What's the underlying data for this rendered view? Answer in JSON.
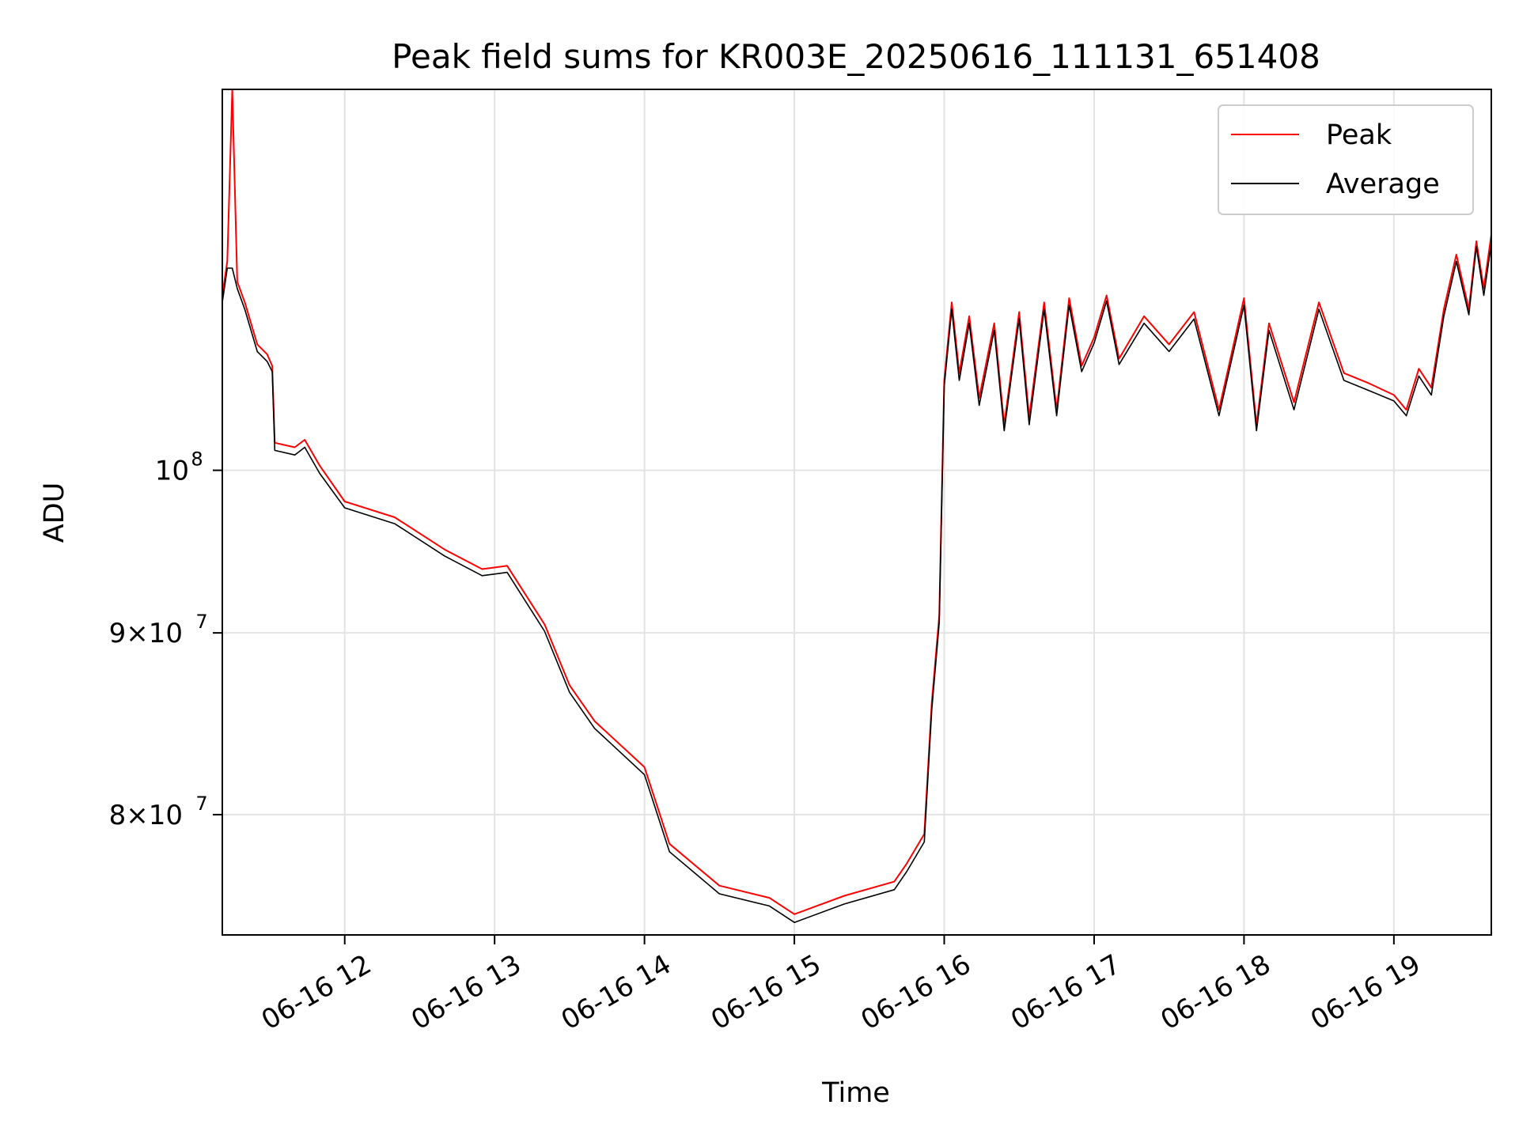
{
  "chart_data": {
    "type": "line",
    "title": "Peak field sums for KR003E_20250616_111131_651408",
    "xlabel": "Time",
    "ylabel": "ADU",
    "y_scale": "log",
    "x_range": [
      "06-16 11:11",
      "06-16 19:39"
    ],
    "ylim": [
      74000000,
      128000000
    ],
    "x_ticks": [
      "06-16 12",
      "06-16 13",
      "06-16 14",
      "06-16 15",
      "06-16 16",
      "06-16 17",
      "06-16 18",
      "06-16 19"
    ],
    "y_ticks": [
      {
        "value": 80000000,
        "mantissa": "8",
        "exponent": "7"
      },
      {
        "value": 90000000,
        "mantissa": "9",
        "exponent": "7"
      },
      {
        "value": 100000000,
        "base": "10",
        "exponent": "8"
      }
    ],
    "grid": true,
    "legend_position": "upper-right",
    "series": [
      {
        "name": "Peak",
        "color": "#ff0000",
        "x": [
          "06-16 11:11",
          "06-16 11:13",
          "06-16 11:15",
          "06-16 11:17",
          "06-16 11:20",
          "06-16 11:25",
          "06-16 11:29",
          "06-16 11:31",
          "06-16 11:32",
          "06-16 11:40",
          "06-16 11:44",
          "06-16 11:50",
          "06-16 12:00",
          "06-16 12:20",
          "06-16 12:40",
          "06-16 12:55",
          "06-16 13:05",
          "06-16 13:20",
          "06-16 13:30",
          "06-16 13:40",
          "06-16 14:00",
          "06-16 14:10",
          "06-16 14:30",
          "06-16 14:50",
          "06-16 15:00",
          "06-16 15:20",
          "06-16 15:40",
          "06-16 15:45",
          "06-16 15:52",
          "06-16 15:55",
          "06-16 15:58",
          "06-16 16:00",
          "06-16 16:03",
          "06-16 16:06",
          "06-16 16:10",
          "06-16 16:14",
          "06-16 16:20",
          "06-16 16:24",
          "06-16 16:30",
          "06-16 16:34",
          "06-16 16:40",
          "06-16 16:45",
          "06-16 16:50",
          "06-16 16:55",
          "06-16 17:00",
          "06-16 17:05",
          "06-16 17:10",
          "06-16 17:20",
          "06-16 17:30",
          "06-16 17:40",
          "06-16 17:50",
          "06-16 18:00",
          "06-16 18:05",
          "06-16 18:10",
          "06-16 18:20",
          "06-16 18:30",
          "06-16 18:40",
          "06-16 18:50",
          "06-16 19:00",
          "06-16 19:05",
          "06-16 19:10",
          "06-16 19:15",
          "06-16 19:20",
          "06-16 19:25",
          "06-16 19:30",
          "06-16 19:33",
          "06-16 19:36",
          "06-16 19:39"
        ],
        "y": [
          112000000,
          114500000,
          128000000,
          113000000,
          111500000,
          108500000,
          107800000,
          107000000,
          101800000,
          101500000,
          102000000,
          100300000,
          98000000,
          97000000,
          95000000,
          93800000,
          94000000,
          90500000,
          87000000,
          85000000,
          82500000,
          78500000,
          76400000,
          75800000,
          75000000,
          75900000,
          76600000,
          77500000,
          79000000,
          86000000,
          91000000,
          106000000,
          111500000,
          106500000,
          110500000,
          104800000,
          110000000,
          103000000,
          110800000,
          103500000,
          111500000,
          104000000,
          111800000,
          107000000,
          109000000,
          112000000,
          107500000,
          110500000,
          108500000,
          110800000,
          104000000,
          111800000,
          103000000,
          110000000,
          104500000,
          111500000,
          106500000,
          105800000,
          105000000,
          104000000,
          106800000,
          105500000,
          111000000,
          115000000,
          111000000,
          116000000,
          112500000,
          116500000
        ]
      },
      {
        "name": "Average",
        "color": "#000000",
        "x": [
          "06-16 11:11",
          "06-16 11:13",
          "06-16 11:15",
          "06-16 11:17",
          "06-16 11:20",
          "06-16 11:25",
          "06-16 11:29",
          "06-16 11:31",
          "06-16 11:32",
          "06-16 11:40",
          "06-16 11:44",
          "06-16 11:50",
          "06-16 12:00",
          "06-16 12:20",
          "06-16 12:40",
          "06-16 12:55",
          "06-16 13:05",
          "06-16 13:20",
          "06-16 13:30",
          "06-16 13:40",
          "06-16 14:00",
          "06-16 14:10",
          "06-16 14:30",
          "06-16 14:50",
          "06-16 15:00",
          "06-16 15:20",
          "06-16 15:40",
          "06-16 15:45",
          "06-16 15:52",
          "06-16 15:55",
          "06-16 15:58",
          "06-16 16:00",
          "06-16 16:03",
          "06-16 16:06",
          "06-16 16:10",
          "06-16 16:14",
          "06-16 16:20",
          "06-16 16:24",
          "06-16 16:30",
          "06-16 16:34",
          "06-16 16:40",
          "06-16 16:45",
          "06-16 16:50",
          "06-16 16:55",
          "06-16 17:00",
          "06-16 17:05",
          "06-16 17:10",
          "06-16 17:20",
          "06-16 17:30",
          "06-16 17:40",
          "06-16 17:50",
          "06-16 18:00",
          "06-16 18:05",
          "06-16 18:10",
          "06-16 18:20",
          "06-16 18:30",
          "06-16 18:40",
          "06-16 18:50",
          "06-16 19:00",
          "06-16 19:05",
          "06-16 19:10",
          "06-16 19:15",
          "06-16 19:20",
          "06-16 19:25",
          "06-16 19:30",
          "06-16 19:33",
          "06-16 19:36",
          "06-16 19:39"
        ],
        "y": [
          111500000,
          114000000,
          114000000,
          112500000,
          111000000,
          108000000,
          107300000,
          106600000,
          101300000,
          101000000,
          101500000,
          99800000,
          97600000,
          96600000,
          94600000,
          93400000,
          93600000,
          90100000,
          86600000,
          84600000,
          82100000,
          78100000,
          76000000,
          75400000,
          74600000,
          75500000,
          76200000,
          77100000,
          78600000,
          85600000,
          90600000,
          105600000,
          111000000,
          106000000,
          110000000,
          104300000,
          109500000,
          102600000,
          110300000,
          103000000,
          111000000,
          103600000,
          111300000,
          106600000,
          108600000,
          111600000,
          107100000,
          110000000,
          108000000,
          110300000,
          103600000,
          111300000,
          102600000,
          109500000,
          104000000,
          111000000,
          106000000,
          105300000,
          104600000,
          103600000,
          106300000,
          105000000,
          110500000,
          114500000,
          110600000,
          115600000,
          112000000,
          115800000
        ]
      }
    ]
  }
}
